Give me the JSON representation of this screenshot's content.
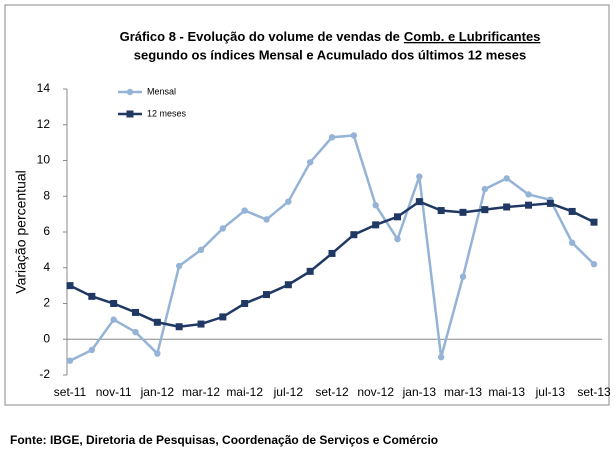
{
  "chart_data": {
    "type": "line",
    "title": "Gráfico 8 - Evolução do volume de vendas de",
    "title_underlined": "Comb. e Lubrificantes",
    "subtitle": "segundo os índices Mensal e Acumulado  dos últimos 12 meses",
    "y_label": "Variação percentual",
    "source": "Fonte: IBGE, Diretoria de Pesquisas, Coordenação de Serviços e Comércio",
    "categories": [
      "set-11",
      null,
      "nov-11",
      null,
      "jan-12",
      null,
      "mar-12",
      null,
      "mai-12",
      null,
      "jul-12",
      null,
      "set-12",
      null,
      "nov-12",
      null,
      "jan-13",
      null,
      "mar-13",
      null,
      "mai-13",
      null,
      "jul-13",
      null,
      "set-13"
    ],
    "series": [
      {
        "name": "Mensal",
        "color": "#95b3d7",
        "marker": "circle",
        "values": [
          -1.2,
          -0.6,
          1.1,
          0.4,
          -0.8,
          4.1,
          5.0,
          6.2,
          7.2,
          6.7,
          7.7,
          9.9,
          11.3,
          11.4,
          7.5,
          5.6,
          9.1,
          -1.0,
          3.5,
          8.4,
          9.0,
          8.1,
          7.8,
          5.4,
          4.2
        ]
      },
      {
        "name": "12 meses",
        "color": "#1f3864",
        "marker": "square",
        "values": [
          3.0,
          2.4,
          2.0,
          1.5,
          0.95,
          0.7,
          0.85,
          1.25,
          2.0,
          2.5,
          3.05,
          3.8,
          4.8,
          5.85,
          6.4,
          6.85,
          7.7,
          7.2,
          7.1,
          7.25,
          7.4,
          7.5,
          7.6,
          7.15,
          6.55
        ]
      }
    ],
    "ylim": [
      -2,
      14
    ],
    "yticks": [
      -2,
      0,
      2,
      4,
      6,
      8,
      10,
      12,
      14
    ],
    "grid": false,
    "legend": "upper left"
  }
}
